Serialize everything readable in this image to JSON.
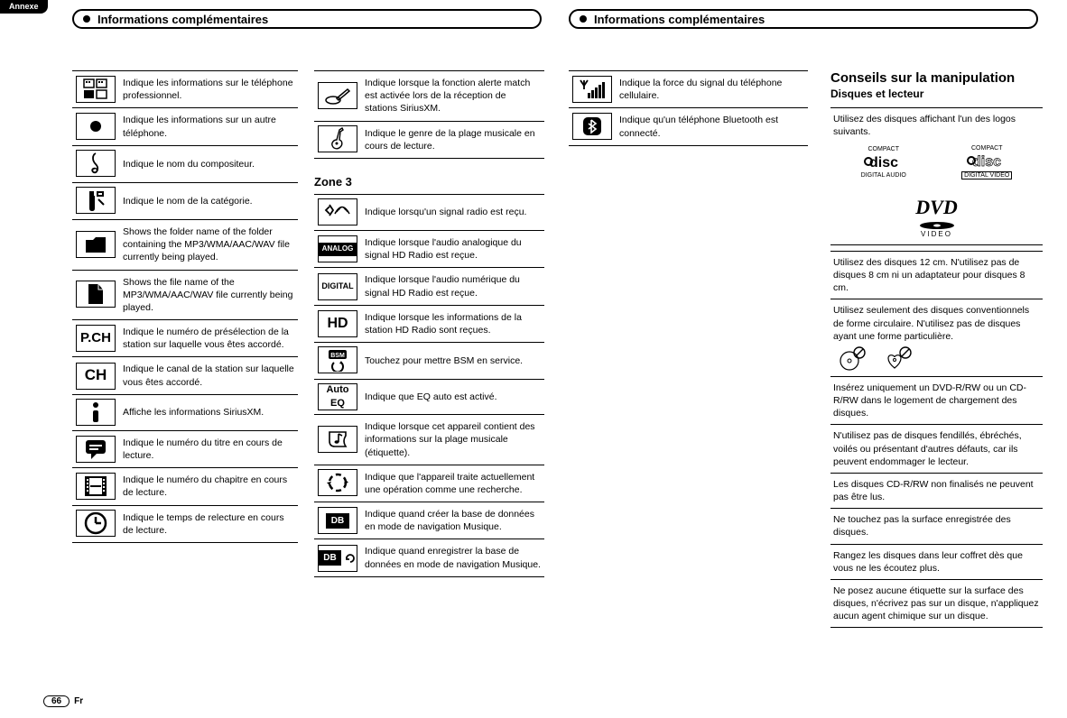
{
  "annexe": "Annexe",
  "header_left": "Informations complémentaires",
  "header_right": "Informations complémentaires",
  "page_number": "66",
  "page_lang": "Fr",
  "zone3_title": "Zone 3",
  "col1": [
    {
      "icon": "grid4",
      "text": "Indique les informations sur le téléphone professionnel."
    },
    {
      "icon": "dot",
      "text": "Indique les informations sur un autre téléphone."
    },
    {
      "icon": "treble",
      "text": "Indique le nom du compositeur."
    },
    {
      "icon": "bottle",
      "text": "Indique le nom de la catégorie."
    },
    {
      "icon": "folder",
      "text": "Shows the folder name of the folder containing the MP3/WMA/AAC/WAV file currently being played."
    },
    {
      "icon": "file",
      "text": "Shows the file name of the MP3/WMA/AAC/WAV file currently being played."
    },
    {
      "icon": "pch",
      "label": "P.CH",
      "text": "Indique le numéro de présélection de la station sur laquelle vous êtes accordé."
    },
    {
      "icon": "ch",
      "label": "CH",
      "text": "Indique le canal de la station sur laquelle vous êtes accordé."
    },
    {
      "icon": "info",
      "text": "Affiche les informations SiriusXM."
    },
    {
      "icon": "chat",
      "text": "Indique le numéro du titre en cours de lecture."
    },
    {
      "icon": "film",
      "text": "Indique le numéro du chapitre en cours de lecture."
    },
    {
      "icon": "clock",
      "text": "Indique le temps de relecture en cours de lecture."
    }
  ],
  "col2_top": [
    {
      "icon": "pen",
      "text": "Indique lorsque la fonction alerte match est activée lors de la réception de stations SiriusXM."
    },
    {
      "icon": "guitar",
      "text": "Indique le genre de la plage musicale en cours de lecture."
    }
  ],
  "col2_zone3": [
    {
      "icon": "radio",
      "text": "Indique lorsqu'un signal radio est reçu."
    },
    {
      "icon": "analog",
      "label": "ANALOG",
      "text": "Indique lorsque l'audio analogique du signal HD Radio est reçue."
    },
    {
      "icon": "digital",
      "label": "DIGITAL",
      "text": "Indique lorsque l'audio numérique du signal HD Radio est reçue."
    },
    {
      "icon": "hd",
      "label": "HD",
      "text": "Indique lorsque les informations de la station HD Radio sont reçues."
    },
    {
      "icon": "bsm",
      "label": "BSM",
      "text": "Touchez pour mettre BSM en service."
    },
    {
      "icon": "autoeq",
      "label": "Auto EQ",
      "text": "Indique que EQ auto est activé."
    },
    {
      "icon": "note",
      "text": "Indique lorsque cet appareil contient des informations sur la plage musicale (étiquette)."
    },
    {
      "icon": "spin",
      "text": "Indique que l'appareil traite actuellement une opération comme une recherche."
    },
    {
      "icon": "db",
      "label": "DB",
      "text": "Indique quand créer la base de données en mode de navigation Musique."
    },
    {
      "icon": "dbrefresh",
      "label": "DB",
      "text": "Indique quand enregistrer la base de données en mode de navigation Musique."
    }
  ],
  "col3": [
    {
      "icon": "signal",
      "text": "Indique la force du signal du téléphone cellulaire."
    },
    {
      "icon": "bt",
      "text": "Indique qu'un téléphone Bluetooth est connecté."
    }
  ],
  "col4_title": "Conseils sur la manipulation",
  "col4_sub": "Disques et lecteur",
  "col4_intro": "Utilisez des disques affichant l'un des logos suivants.",
  "logo_cd_top": "COMPACT",
  "logo_cd_word": "disc",
  "logo_cd_audio": "DIGITAL AUDIO",
  "logo_cd_video": "DIGITAL VIDEO",
  "logo_dvd": "DVD",
  "logo_dvd_sub": "VIDEO",
  "tips": [
    "Utilisez des disques 12 cm. N'utilisez pas de disques 8 cm ni un adaptateur pour disques 8 cm.",
    "Utilisez seulement des disques conventionnels de forme circulaire. N'utilisez pas de disques ayant une forme particulière.",
    "Insérez uniquement un DVD-R/RW ou un CD-R/RW dans le logement de chargement des disques.",
    "N'utilisez pas de disques fendillés, ébréchés, voilés ou présentant d'autres défauts, car ils peuvent endommager le lecteur.",
    "Les disques CD-R/RW non finalisés ne peuvent pas être lus.",
    "Ne touchez pas la surface enregistrée des disques.",
    "Rangez les disques dans leur coffret dès que vous ne les écoutez plus.",
    "Ne posez aucune étiquette sur la surface des disques, n'écrivez pas sur un disque, n'appliquez aucun agent chimique sur un disque."
  ]
}
